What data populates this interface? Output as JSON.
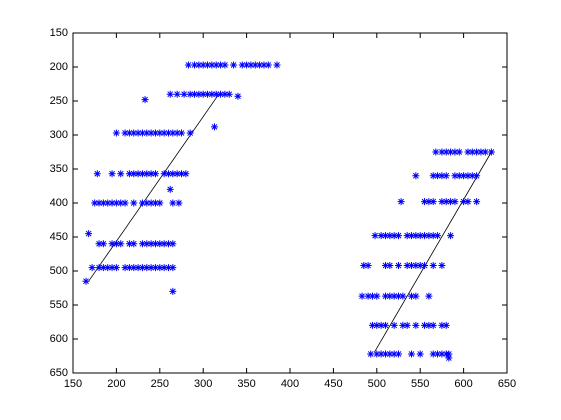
{
  "chart_data": {
    "type": "scatter",
    "xlim": [
      150,
      650
    ],
    "ylim": [
      150,
      650
    ],
    "y_reversed": true,
    "xticks": [
      150,
      200,
      250,
      300,
      350,
      400,
      450,
      500,
      550,
      600,
      650
    ],
    "yticks": [
      150,
      200,
      250,
      300,
      350,
      400,
      450,
      500,
      550,
      600,
      650
    ],
    "grid": false,
    "series": [
      {
        "color": "#0000ff",
        "marker": "*",
        "x": [
          283,
          290,
          295,
          300,
          305,
          310,
          315,
          320,
          325,
          335,
          345,
          350,
          355,
          360,
          365,
          370,
          375,
          385,
          262,
          270,
          278,
          285,
          290,
          295,
          300,
          305,
          310,
          315,
          320,
          325,
          330,
          340,
          233,
          313,
          200,
          210,
          215,
          220,
          225,
          230,
          235,
          240,
          245,
          250,
          255,
          260,
          265,
          270,
          275,
          285,
          178,
          195,
          205,
          215,
          220,
          225,
          230,
          235,
          240,
          245,
          255,
          260,
          265,
          270,
          275,
          280,
          262,
          175,
          180,
          185,
          190,
          195,
          200,
          205,
          210,
          220,
          230,
          235,
          240,
          245,
          250,
          265,
          272,
          168,
          180,
          185,
          195,
          200,
          205,
          215,
          220,
          230,
          235,
          240,
          245,
          250,
          255,
          260,
          265,
          172,
          180,
          185,
          190,
          195,
          200,
          210,
          215,
          220,
          225,
          230,
          235,
          240,
          245,
          250,
          255,
          260,
          265,
          165,
          265,
          568,
          575,
          580,
          585,
          590,
          595,
          605,
          610,
          615,
          620,
          625,
          632,
          545,
          565,
          570,
          575,
          580,
          590,
          595,
          600,
          605,
          610,
          615,
          528,
          555,
          560,
          565,
          575,
          580,
          585,
          590,
          600,
          605,
          615,
          498,
          505,
          510,
          515,
          520,
          525,
          535,
          540,
          545,
          550,
          555,
          560,
          565,
          570,
          585,
          485,
          490,
          510,
          515,
          525,
          535,
          540,
          545,
          550,
          555,
          565,
          575,
          483,
          490,
          495,
          500,
          510,
          515,
          520,
          525,
          530,
          540,
          545,
          560,
          495,
          500,
          505,
          510,
          520,
          530,
          535,
          545,
          555,
          560,
          565,
          575,
          580,
          493,
          500,
          505,
          510,
          515,
          520,
          525,
          540,
          550,
          565,
          570,
          575,
          580,
          583,
          583
        ],
        "values": [
          197,
          197,
          197,
          197,
          197,
          197,
          197,
          197,
          197,
          197,
          197,
          197,
          197,
          197,
          197,
          197,
          197,
          197,
          240,
          240,
          240,
          240,
          240,
          240,
          240,
          240,
          240,
          240,
          240,
          240,
          240,
          243,
          248,
          288,
          297,
          297,
          297,
          297,
          297,
          297,
          297,
          297,
          297,
          297,
          297,
          297,
          297,
          297,
          297,
          297,
          357,
          357,
          357,
          357,
          357,
          357,
          357,
          357,
          357,
          357,
          357,
          357,
          357,
          357,
          357,
          357,
          380,
          400,
          400,
          400,
          400,
          400,
          400,
          400,
          400,
          400,
          400,
          400,
          400,
          400,
          400,
          400,
          400,
          445,
          460,
          460,
          460,
          460,
          460,
          460,
          460,
          460,
          460,
          460,
          460,
          460,
          460,
          460,
          460,
          495,
          495,
          495,
          495,
          495,
          495,
          495,
          495,
          495,
          495,
          495,
          495,
          495,
          495,
          495,
          495,
          495,
          495,
          515,
          530,
          325,
          325,
          325,
          325,
          325,
          325,
          325,
          325,
          325,
          325,
          325,
          325,
          360,
          360,
          360,
          360,
          360,
          360,
          360,
          360,
          360,
          360,
          360,
          398,
          398,
          398,
          398,
          398,
          398,
          398,
          398,
          398,
          398,
          398,
          448,
          448,
          448,
          448,
          448,
          448,
          448,
          448,
          448,
          448,
          448,
          448,
          448,
          448,
          448,
          492,
          492,
          492,
          492,
          492,
          492,
          492,
          492,
          492,
          492,
          492,
          492,
          537,
          537,
          537,
          537,
          537,
          537,
          537,
          537,
          537,
          537,
          537,
          537,
          580,
          580,
          580,
          580,
          580,
          580,
          580,
          580,
          580,
          580,
          580,
          580,
          580,
          622,
          622,
          622,
          622,
          622,
          622,
          622,
          622,
          622,
          622,
          622,
          622,
          622,
          622,
          628
        ]
      }
    ],
    "lines": [
      {
        "color": "#000000",
        "x": [
          168,
          318
        ],
        "values": [
          515,
          240
        ]
      },
      {
        "color": "#000000",
        "x": [
          497,
          632
        ],
        "values": [
          620,
          325
        ]
      }
    ]
  }
}
